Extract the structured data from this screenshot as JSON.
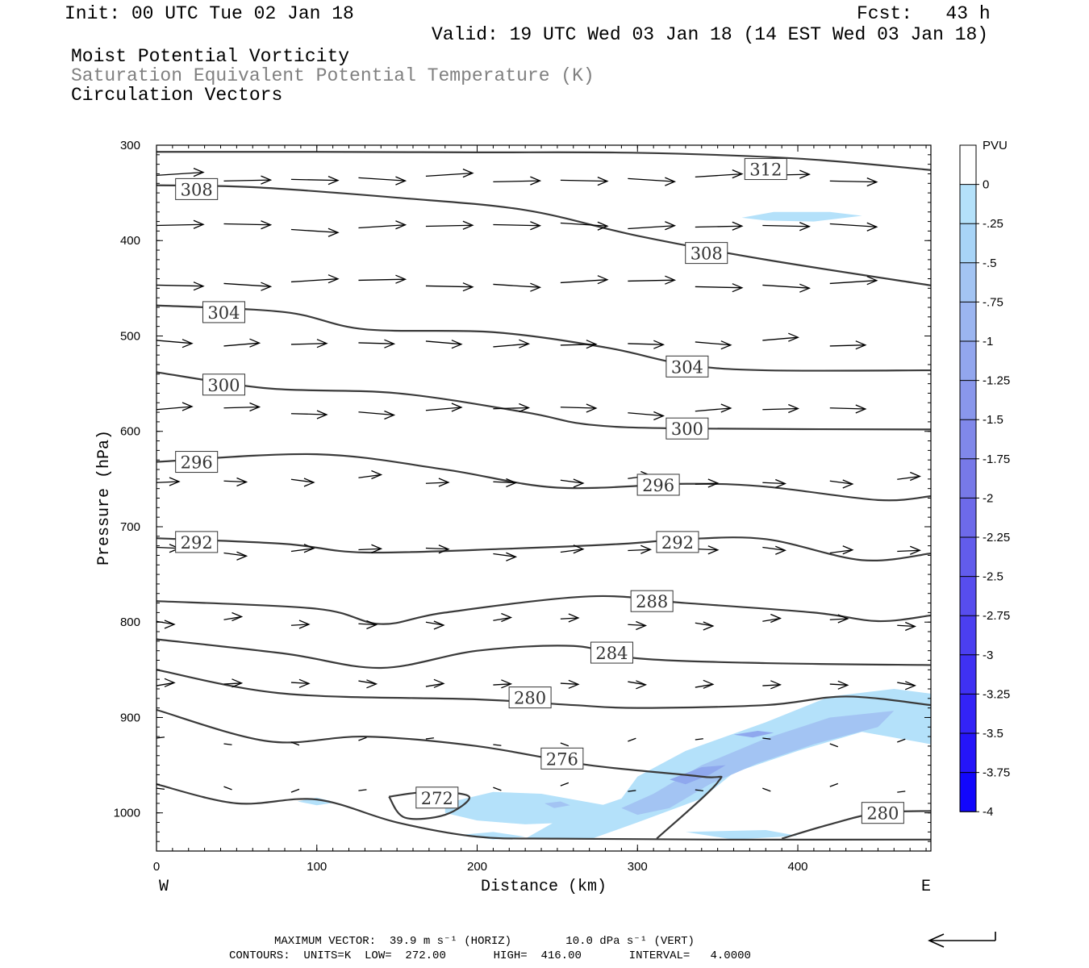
{
  "header": {
    "init": "Init: 00 UTC Tue 02 Jan 18",
    "fcst": "Fcst:   43 h",
    "valid": "Valid: 19 UTC Wed 03 Jan 18 (14 EST Wed 03 Jan 18)",
    "field1": "Moist Potential Vorticity",
    "field2": "Saturation Equivalent Potential Temperature (K)",
    "field3": "Circulation Vectors"
  },
  "footer": {
    "line1": "MAXIMUM VECTOR:  39.9 m s⁻¹ (HORIZ)        10.0 dPa s⁻¹ (VERT)",
    "line2": "CONTOURS:  UNITS=K  LOW=  272.00       HIGH=  416.00       INTERVAL=   4.0000"
  },
  "colors": {
    "contour": "#3a3a3a",
    "mpv_light": "#b4e1fa",
    "mpv_mid": "#a3c4f3",
    "mpv_dark": "#8fa8ee"
  },
  "chart_data": {
    "type": "cross-section",
    "xlabel": "Distance (km)",
    "ylabel": "Pressure (hPa)",
    "xlim": [
      0,
      483
    ],
    "ylim": [
      1040,
      300
    ],
    "x_ticks": [
      0,
      100,
      200,
      300,
      400
    ],
    "y_ticks": [
      300,
      400,
      500,
      600,
      700,
      800,
      900,
      1000
    ],
    "x_end_labels": {
      "left": "W",
      "right": "E"
    },
    "colorbar": {
      "unit": "PVU",
      "levels": [
        "0",
        "-.25",
        "-.5",
        "-.75",
        "-1",
        "-1.25",
        "-1.5",
        "-1.75",
        "-2",
        "-2.25",
        "-2.5",
        "-2.75",
        "-3",
        "-3.25",
        "-3.5",
        "-3.75",
        "-4"
      ],
      "colors": [
        "#ffffff",
        "#b4e1fa",
        "#a8d4f7",
        "#a3c4f3",
        "#9bb5f0",
        "#92a6ee",
        "#8997ec",
        "#8088ea",
        "#7779e8",
        "#6d6aea",
        "#625cec",
        "#574dee",
        "#4b3ff0",
        "#3f31f3",
        "#3323f6",
        "#2515f9",
        "#1207fc"
      ]
    },
    "contours": [
      {
        "label": "312",
        "points": [
          [
            0,
            307
          ],
          [
            100,
            307
          ],
          [
            200,
            307.5
          ],
          [
            300,
            308
          ],
          [
            400,
            314
          ],
          [
            483,
            326
          ]
        ],
        "labels": [
          [
            380,
            325
          ]
        ]
      },
      {
        "label": "308",
        "points": [
          [
            0,
            342
          ],
          [
            60,
            344
          ],
          [
            150,
            355
          ],
          [
            230,
            368
          ],
          [
            300,
            395
          ],
          [
            380,
            420
          ],
          [
            483,
            447
          ]
        ],
        "labels": [
          [
            25,
            346
          ],
          [
            343,
            413
          ]
        ]
      },
      {
        "label": "304",
        "points": [
          [
            0,
            468
          ],
          [
            80,
            475
          ],
          [
            130,
            493
          ],
          [
            210,
            496
          ],
          [
            280,
            512
          ],
          [
            330,
            530
          ],
          [
            380,
            536
          ],
          [
            483,
            536
          ]
        ],
        "labels": [
          [
            42,
            475
          ],
          [
            331,
            532
          ]
        ]
      },
      {
        "label": "300",
        "points": [
          [
            0,
            538
          ],
          [
            70,
            555
          ],
          [
            150,
            560
          ],
          [
            230,
            580
          ],
          [
            270,
            593
          ],
          [
            330,
            597
          ],
          [
            483,
            598
          ]
        ],
        "labels": [
          [
            42,
            551
          ],
          [
            331,
            597
          ]
        ]
      },
      {
        "label": "296",
        "points": [
          [
            0,
            632
          ],
          [
            100,
            624
          ],
          [
            180,
            640
          ],
          [
            250,
            659
          ],
          [
            330,
            655
          ],
          [
            380,
            658
          ],
          [
            450,
            672
          ],
          [
            483,
            668
          ]
        ],
        "labels": [
          [
            25,
            632
          ],
          [
            313,
            656
          ]
        ]
      },
      {
        "label": "292",
        "points": [
          [
            0,
            712
          ],
          [
            80,
            718
          ],
          [
            130,
            727
          ],
          [
            220,
            723
          ],
          [
            290,
            718
          ],
          [
            330,
            713
          ],
          [
            380,
            713
          ],
          [
            440,
            735
          ],
          [
            483,
            728
          ]
        ],
        "labels": [
          [
            25,
            716
          ],
          [
            325,
            716
          ]
        ]
      },
      {
        "label": "288",
        "points": [
          [
            0,
            778
          ],
          [
            100,
            786
          ],
          [
            140,
            802
          ],
          [
            180,
            790
          ],
          [
            270,
            773
          ],
          [
            330,
            780
          ],
          [
            410,
            790
          ],
          [
            450,
            799
          ],
          [
            483,
            793
          ]
        ],
        "labels": [
          [
            309,
            778
          ]
        ]
      },
      {
        "label": "284",
        "points": [
          [
            0,
            818
          ],
          [
            80,
            833
          ],
          [
            140,
            848
          ],
          [
            200,
            830
          ],
          [
            260,
            825
          ],
          [
            300,
            838
          ],
          [
            380,
            843
          ],
          [
            483,
            845
          ]
        ],
        "labels": [
          [
            284,
            832
          ]
        ]
      },
      {
        "label": "280",
        "points": [
          [
            0,
            850
          ],
          [
            80,
            875
          ],
          [
            200,
            881
          ],
          [
            260,
            887
          ],
          [
            300,
            890
          ],
          [
            380,
            887
          ],
          [
            430,
            878
          ],
          [
            483,
            887
          ]
        ],
        "labels": [
          [
            233,
            879
          ]
        ]
      },
      {
        "label": "276",
        "points": [
          [
            0,
            892
          ],
          [
            70,
            925
          ],
          [
            130,
            920
          ],
          [
            200,
            930
          ],
          [
            270,
            950
          ],
          [
            340,
            962
          ],
          [
            350,
            968
          ],
          [
            312,
            1027
          ]
        ],
        "labels": [
          [
            253,
            943
          ]
        ]
      },
      {
        "label": "272",
        "points": [
          [
            0,
            970
          ],
          [
            50,
            990
          ],
          [
            100,
            986
          ],
          [
            150,
            1010
          ],
          [
            200,
            1025
          ],
          [
            250,
            1027
          ],
          [
            350,
            1028
          ],
          [
            483,
            1028
          ]
        ],
        "labels": []
      },
      {
        "label": "272",
        "points": [
          [
            145,
            983
          ],
          [
            170,
            978
          ],
          [
            195,
            983
          ],
          [
            180,
            1002
          ],
          [
            155,
            1005
          ],
          [
            145,
            983
          ]
        ],
        "labels": [
          [
            175,
            984
          ]
        ]
      },
      {
        "label": "280",
        "points": [
          [
            390,
            1027
          ],
          [
            420,
            1012
          ],
          [
            450,
            1000
          ],
          [
            483,
            998
          ]
        ],
        "labels": [
          [
            453,
            1000
          ]
        ]
      }
    ],
    "vectors_note": "circulation vectors drawn as arrows at grid points",
    "max_vector": {
      "horiz": "39.9 m s-1",
      "vert": "10.0 dPa s-1"
    },
    "contour_units": "K",
    "contour_low": 272.0,
    "contour_high": 416.0,
    "contour_interval": 4.0
  }
}
